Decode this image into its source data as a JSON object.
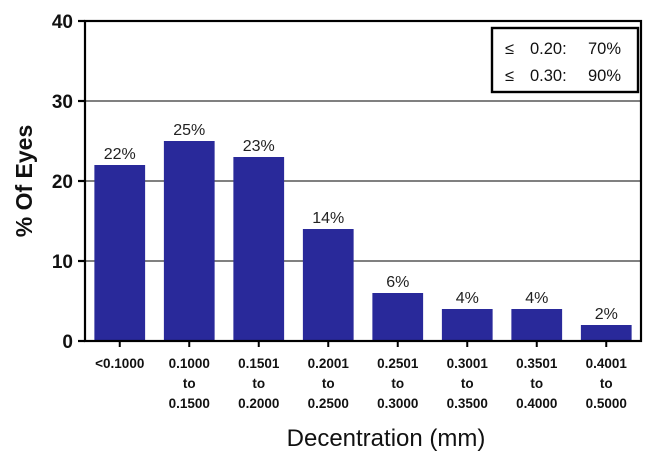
{
  "chart_data": {
    "type": "bar",
    "categories": [
      [
        "<0.1000"
      ],
      [
        "0.1000",
        "to",
        "0.1500"
      ],
      [
        "0.1501",
        "to",
        "0.2000"
      ],
      [
        "0.2001",
        "to",
        "0.2500"
      ],
      [
        "0.2501",
        "to",
        "0.3000"
      ],
      [
        "0.3001",
        "to",
        "0.3500"
      ],
      [
        "0.3501",
        "to",
        "0.4000"
      ],
      [
        "0.4001",
        "to",
        "0.5000"
      ]
    ],
    "values": [
      22,
      25,
      23,
      14,
      6,
      4,
      4,
      2
    ],
    "data_labels": [
      "22%",
      "25%",
      "23%",
      "14%",
      "6%",
      "4%",
      "4%",
      "2%"
    ],
    "title": "",
    "xlabel": "Decentration (mm)",
    "ylabel": "% Of Eyes",
    "ylim": [
      0,
      40
    ],
    "yticks": [
      "0",
      "10",
      "20",
      "30",
      "40"
    ],
    "grid": true,
    "bar_color": "#29299a",
    "legend_position": "top-right",
    "legend": [
      {
        "symbol": "≤",
        "threshold": "0.20:",
        "percent": "70%"
      },
      {
        "symbol": "≤",
        "threshold": "0.30:",
        "percent": "90%"
      }
    ]
  }
}
